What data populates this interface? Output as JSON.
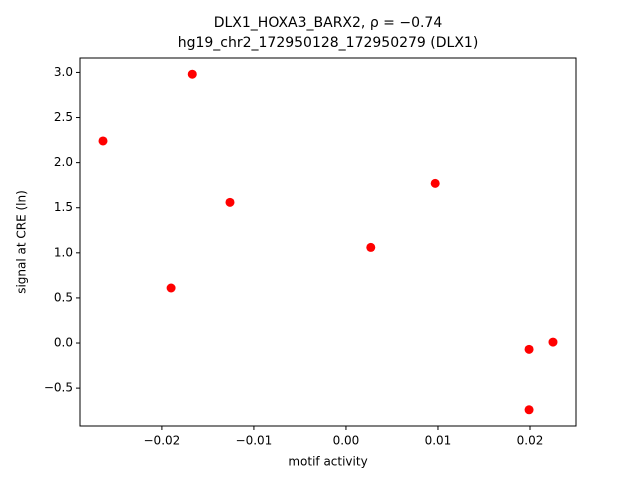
{
  "chart_data": {
    "type": "scatter",
    "title": "DLX1_HOXA3_BARX2, ρ = −0.74",
    "subtitle": "hg19_chr2_172950128_172950279 (DLX1)",
    "x_label": "motif activity",
    "y_label": "signal at CRE (ln)",
    "color": "#ff0000",
    "x": [
      -0.0264,
      -0.0167,
      -0.019,
      -0.0126,
      0.0027,
      0.0097,
      0.0199,
      0.0225,
      0.0199
    ],
    "values": [
      2.24,
      2.98,
      0.61,
      1.56,
      1.06,
      1.77,
      -0.07,
      0.01,
      -0.74
    ],
    "xlim": [
      -0.0289,
      0.025
    ],
    "ylim": [
      -0.92,
      3.16
    ],
    "xticks": [
      {
        "value": -0.02,
        "label": "−0.02"
      },
      {
        "value": -0.01,
        "label": "−0.01"
      },
      {
        "value": 0,
        "label": "0.00"
      },
      {
        "value": 0.01,
        "label": "0.01"
      },
      {
        "value": 0.02,
        "label": "0.02"
      }
    ],
    "yticks": [
      {
        "value": -0.5,
        "label": "−0.5"
      },
      {
        "value": 0,
        "label": "0.0"
      },
      {
        "value": 0.5,
        "label": "0.5"
      },
      {
        "value": 1,
        "label": "1.0"
      },
      {
        "value": 1.5,
        "label": "1.5"
      },
      {
        "value": 2,
        "label": "2.0"
      },
      {
        "value": 2.5,
        "label": "2.5"
      },
      {
        "value": 3,
        "label": "3.0"
      }
    ]
  }
}
